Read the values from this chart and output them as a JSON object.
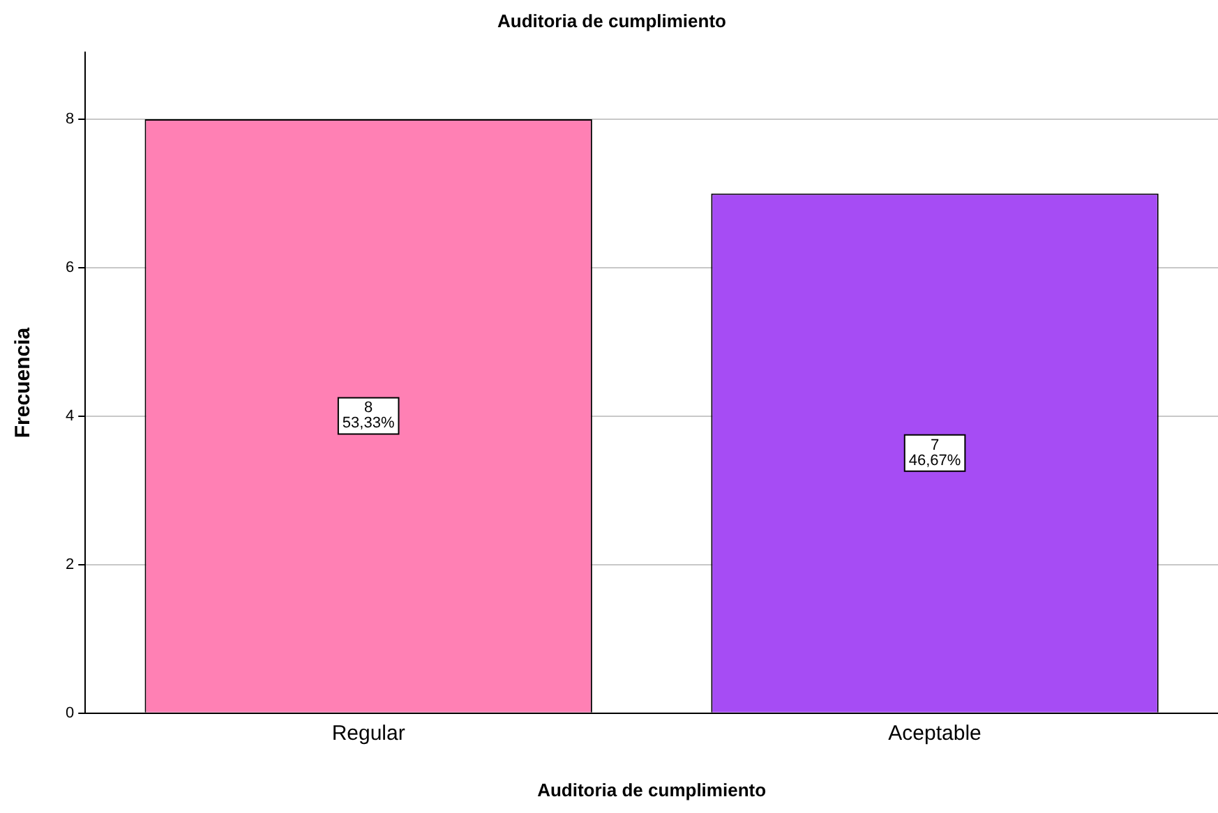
{
  "chart_data": {
    "type": "bar",
    "title": "Auditoria de cumplimiento",
    "xlabel": "Auditoria de cumplimiento",
    "ylabel": "Frecuencia",
    "categories": [
      "Regular",
      "Aceptable"
    ],
    "values": [
      8,
      7
    ],
    "colors": [
      "#ff80b4",
      "#a64cf4"
    ],
    "value_labels": [
      "8\n53,33%",
      "7\n46,67%"
    ],
    "ylim": [
      0,
      8.9
    ],
    "yticks": [
      0,
      2,
      4,
      6,
      8
    ],
    "grid": "y",
    "legend": false
  }
}
